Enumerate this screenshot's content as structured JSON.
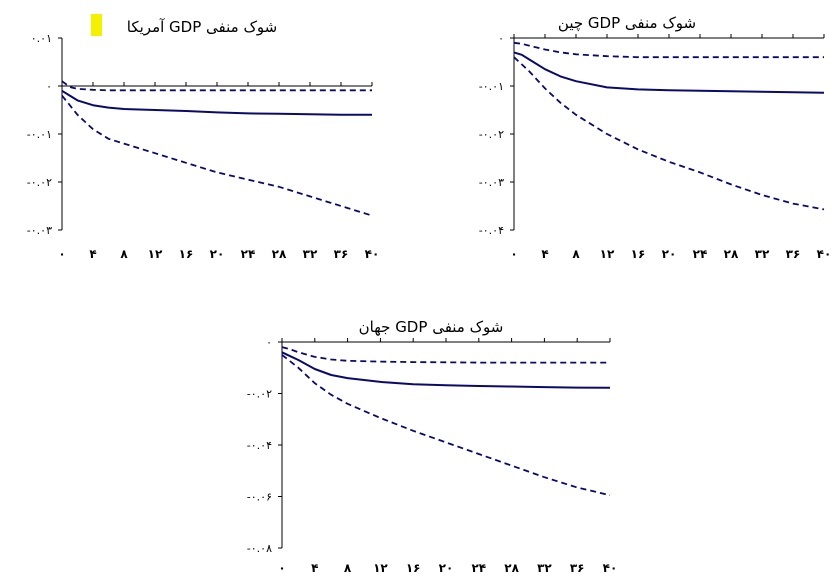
{
  "colors": {
    "series": "#0a0a6e",
    "axis": "#000000",
    "highlight": "#f5ef00"
  },
  "chart_data": [
    {
      "type": "line",
      "title": "شوک منفی GDP آمریکا",
      "xticks": [
        "۰",
        "۴",
        "۸",
        "۱۲",
        "۱۶",
        "۲۰",
        "۲۴",
        "۲۸",
        "۳۲",
        "۳۶",
        "۴۰"
      ],
      "yticks": [
        "۰.۰۱",
        "۰",
        "-۰.۰۱",
        "-۰.۰۲",
        "-۰.۰۳"
      ],
      "ylim": [
        -0.03,
        0.01
      ],
      "zero_line": true,
      "x": [
        0,
        1,
        2,
        4,
        6,
        8,
        12,
        16,
        20,
        24,
        28,
        32,
        36,
        40
      ],
      "series": [
        {
          "style": "dashed",
          "values": [
            0.001,
            -0.0002,
            -0.0006,
            -0.0008,
            -0.0009,
            -0.0009,
            -0.0009,
            -0.0009,
            -0.0009,
            -0.0009,
            -0.0009,
            -0.0009,
            -0.0009,
            -0.0009
          ]
        },
        {
          "style": "solid",
          "values": [
            -0.001,
            -0.002,
            -0.003,
            -0.004,
            -0.0045,
            -0.0048,
            -0.005,
            -0.0052,
            -0.0055,
            -0.0057,
            -0.0058,
            -0.0059,
            -0.006,
            -0.006
          ]
        },
        {
          "style": "dashed",
          "values": [
            -0.002,
            -0.004,
            -0.006,
            -0.009,
            -0.011,
            -0.012,
            -0.014,
            -0.016,
            -0.018,
            -0.0195,
            -0.021,
            -0.023,
            -0.025,
            -0.027
          ]
        }
      ]
    },
    {
      "type": "line",
      "title": "شوک منفی GDP چین",
      "xticks": [
        "۰",
        "۴",
        "۸",
        "۱۲",
        "۱۶",
        "۲۰",
        "۲۴",
        "۲۸",
        "۳۲",
        "۳۶",
        "۴۰"
      ],
      "yticks": [
        "۰",
        "-۰.۰۱",
        "-۰.۰۲",
        "-۰.۰۳",
        "-۰.۰۴"
      ],
      "ylim": [
        -0.04,
        0.0
      ],
      "zero_line": false,
      "x": [
        0,
        1,
        2,
        4,
        6,
        8,
        12,
        16,
        20,
        24,
        28,
        32,
        36,
        40
      ],
      "series": [
        {
          "style": "dashed",
          "values": [
            -0.001,
            -0.0012,
            -0.0016,
            -0.0024,
            -0.003,
            -0.0034,
            -0.0038,
            -0.004,
            -0.004,
            -0.004,
            -0.004,
            -0.004,
            -0.004,
            -0.004
          ]
        },
        {
          "style": "solid",
          "values": [
            -0.003,
            -0.0035,
            -0.0045,
            -0.0065,
            -0.008,
            -0.009,
            -0.0103,
            -0.0107,
            -0.0109,
            -0.011,
            -0.0111,
            -0.0112,
            -0.0113,
            -0.0114
          ]
        },
        {
          "style": "dashed",
          "values": [
            -0.004,
            -0.0055,
            -0.007,
            -0.0105,
            -0.0135,
            -0.016,
            -0.02,
            -0.0232,
            -0.0258,
            -0.028,
            -0.0305,
            -0.0327,
            -0.0345,
            -0.0357
          ]
        }
      ]
    },
    {
      "type": "line",
      "title": "شوک منفی GDP جهان",
      "xticks": [
        "۰",
        "۴",
        "۸",
        "۱۲",
        "۱۶",
        "۲۰",
        "۲۴",
        "۲۸",
        "۳۲",
        "۳۶",
        "۴۰"
      ],
      "yticks": [
        "۰",
        "-۰.۰۲",
        "-۰.۰۴",
        "-۰.۰۶",
        "-۰.۰۸"
      ],
      "ylim": [
        -0.08,
        0.0
      ],
      "zero_line": false,
      "x": [
        0,
        1,
        2,
        4,
        6,
        8,
        12,
        16,
        20,
        24,
        28,
        32,
        36,
        40
      ],
      "series": [
        {
          "style": "dashed",
          "values": [
            -0.002,
            -0.0028,
            -0.004,
            -0.0058,
            -0.0068,
            -0.0073,
            -0.0076,
            -0.0078,
            -0.0079,
            -0.008,
            -0.008,
            -0.008,
            -0.008,
            -0.008
          ]
        },
        {
          "style": "solid",
          "values": [
            -0.004,
            -0.0055,
            -0.007,
            -0.0105,
            -0.0128,
            -0.014,
            -0.0155,
            -0.0164,
            -0.0168,
            -0.0171,
            -0.0173,
            -0.0175,
            -0.0177,
            -0.0178
          ]
        },
        {
          "style": "dashed",
          "values": [
            -0.005,
            -0.0075,
            -0.01,
            -0.016,
            -0.0205,
            -0.024,
            -0.0295,
            -0.0345,
            -0.039,
            -0.0435,
            -0.048,
            -0.0525,
            -0.0565,
            -0.0595
          ]
        }
      ]
    }
  ]
}
